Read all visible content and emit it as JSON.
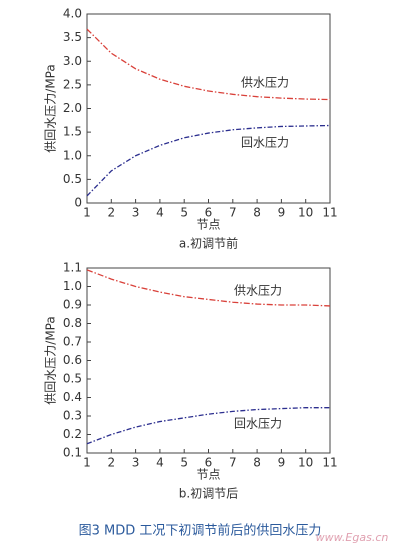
{
  "chart_data": [
    {
      "type": "line",
      "ylabel": "供回水压力/MPa",
      "xlabel": "节点",
      "caption": "a.初调节前",
      "x": [
        1,
        2,
        3,
        4,
        5,
        6,
        7,
        8,
        9,
        10,
        11
      ],
      "xlim": [
        1,
        11
      ],
      "xticks": [
        1,
        2,
        3,
        4,
        5,
        6,
        7,
        8,
        9,
        10,
        11
      ],
      "ylim": [
        0,
        4
      ],
      "yticks": [
        0,
        0.5,
        {
          "value": 1,
          "label": "1.0"
        },
        1.5,
        {
          "value": 2,
          "label": "2.0"
        },
        2.5,
        {
          "value": 3,
          "label": "3.0"
        },
        3.5,
        {
          "value": 4,
          "label": "4.0"
        }
      ],
      "annotations": [
        "供水压力",
        "回水压力"
      ],
      "series": [
        {
          "color": "#d9413a",
          "values": [
            3.68,
            3.17,
            2.84,
            2.62,
            2.47,
            2.37,
            2.3,
            2.25,
            2.22,
            2.2,
            2.19
          ]
        },
        {
          "color": "#2c2f8f",
          "values": [
            0.15,
            0.68,
            1.0,
            1.22,
            1.38,
            1.48,
            1.55,
            1.59,
            1.62,
            1.63,
            1.64
          ]
        }
      ]
    },
    {
      "type": "line",
      "ylabel": "供回水压力/MPa",
      "xlabel": "节点",
      "caption": "b.初调节后",
      "x": [
        1,
        2,
        3,
        4,
        5,
        6,
        7,
        8,
        9,
        10,
        11
      ],
      "xlim": [
        1,
        11
      ],
      "xticks": [
        1,
        2,
        3,
        4,
        5,
        6,
        7,
        8,
        9,
        10,
        11
      ],
      "ylim": [
        0.1,
        1.1
      ],
      "yticks": [
        0.1,
        0.2,
        0.3,
        0.4,
        0.5,
        0.6,
        0.7,
        0.8,
        0.9,
        {
          "value": 1,
          "label": "1.0"
        },
        1.1
      ],
      "annotations": [
        "供水压力",
        "回水压力"
      ],
      "series": [
        {
          "color": "#d9413a",
          "values": [
            1.09,
            1.04,
            1.0,
            0.97,
            0.945,
            0.93,
            0.915,
            0.905,
            0.9,
            0.9,
            0.895
          ]
        },
        {
          "color": "#2c2f8f",
          "values": [
            0.15,
            0.2,
            0.24,
            0.27,
            0.29,
            0.31,
            0.325,
            0.335,
            0.34,
            0.345,
            0.345
          ]
        }
      ]
    }
  ],
  "caption": "图3   MDD 工况下初调节前后的供回水压力",
  "watermark": "www.Egas.cn"
}
